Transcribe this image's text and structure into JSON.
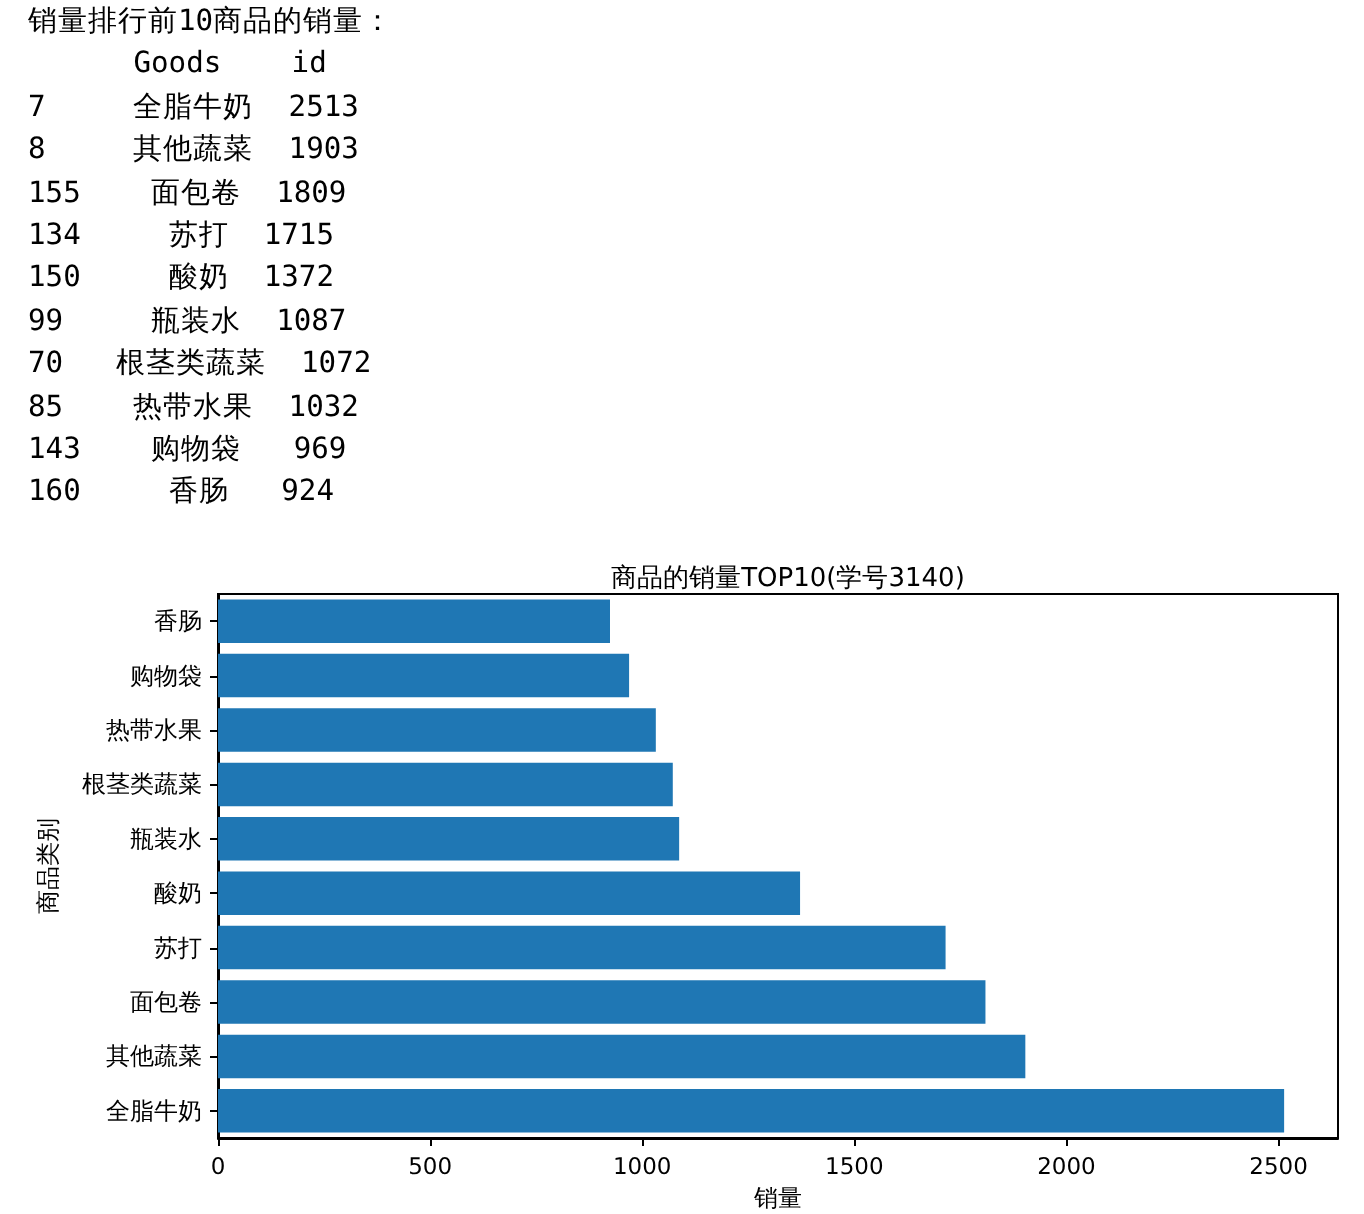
{
  "chart_data": {
    "type": "bar",
    "orientation": "horizontal",
    "title": "商品的销量TOP10(学号3140)",
    "xlabel": "销量",
    "ylabel": "商品类别",
    "categories": [
      "香肠",
      "购物袋",
      "热带水果",
      "根茎类蔬菜",
      "瓶装水",
      "酸奶",
      "苏打",
      "面包卷",
      "其他蔬菜",
      "全脂牛奶"
    ],
    "values": [
      924,
      969,
      1032,
      1072,
      1087,
      1372,
      1715,
      1809,
      1903,
      2513
    ],
    "color": "#1f77b4",
    "xlim": [
      0,
      2640
    ],
    "xticks": [
      0,
      500,
      1000,
      1500,
      2000,
      2500
    ],
    "grid": false,
    "annotations": [
      "销量排行前10商品的销量：",
      "      Goods    id",
      "7     全脂牛奶  2513",
      "8     其他蔬菜  1903",
      "155    面包卷  1809",
      "134     苏打  1715",
      "150     酸奶  1372",
      "99     瓶装水  1087",
      "70   根茎类蔬菜  1072",
      "85    热带水果  1032",
      "143    购物袋   969",
      "160     香肠   924"
    ]
  }
}
